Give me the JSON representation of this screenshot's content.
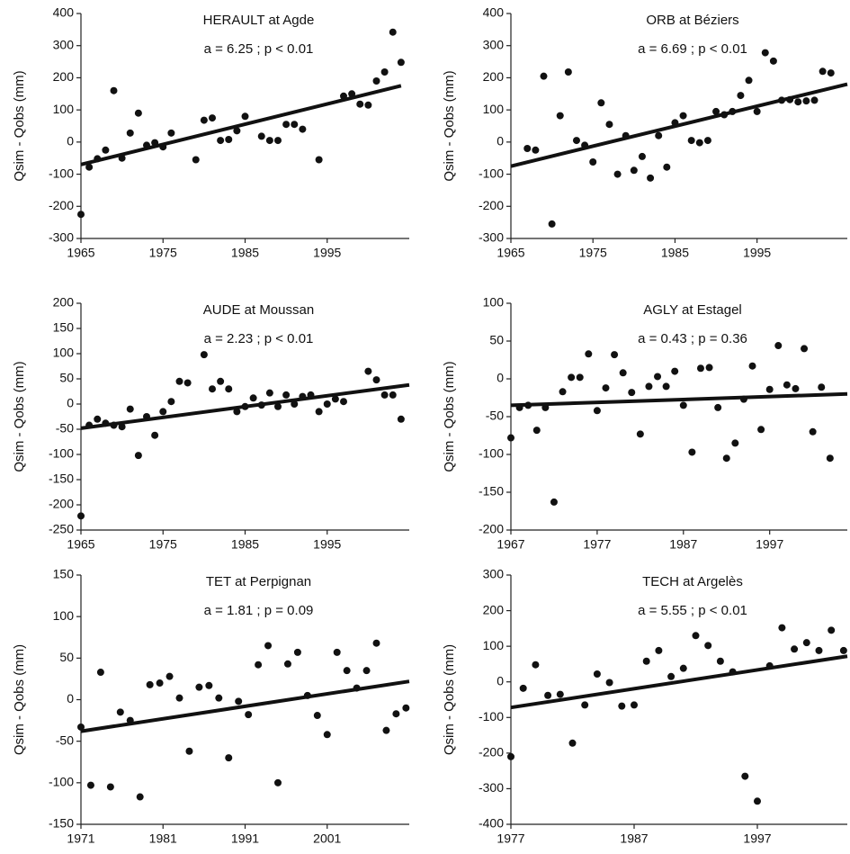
{
  "chart_data": [
    {
      "type": "scatter",
      "title": "HERAULT at Agde",
      "annotation": "a = 6.25 ; p < 0.01",
      "y_label": "Qsim - Qobs (mm)",
      "color": "#111111",
      "x": [
        1965,
        1966,
        1967,
        1968,
        1969,
        1970,
        1971,
        1972,
        1973,
        1974,
        1975,
        1976,
        1979,
        1980,
        1981,
        1982,
        1983,
        1984,
        1985,
        1987,
        1988,
        1989,
        1990,
        1991,
        1992,
        1994,
        1997,
        1998,
        1999,
        2000,
        2001,
        2002,
        2003,
        2004
      ],
      "values": [
        -225,
        -78,
        -52,
        -25,
        160,
        -50,
        28,
        90,
        -10,
        -2,
        -15,
        28,
        -55,
        68,
        75,
        5,
        8,
        35,
        80,
        18,
        5,
        5,
        55,
        55,
        40,
        -55,
        143,
        150,
        118,
        115,
        190,
        218,
        342,
        248
      ],
      "trend": {
        "x": [
          1965,
          2004
        ],
        "y": [
          -70,
          175
        ]
      },
      "xlim": [
        1965,
        2005
      ],
      "xticks": [
        1965,
        1975,
        1985,
        1995
      ],
      "ylim": [
        -300,
        400
      ],
      "yticks": [
        -300,
        -200,
        -100,
        0,
        100,
        200,
        300,
        400
      ]
    },
    {
      "type": "scatter",
      "title": "ORB at Béziers",
      "annotation": "a = 6.69 ; p < 0.01",
      "y_label": "Qsim - Qobs (mm)",
      "color": "#111111",
      "x": [
        1967,
        1968,
        1969,
        1970,
        1971,
        1972,
        1973,
        1974,
        1975,
        1976,
        1977,
        1978,
        1979,
        1980,
        1981,
        1982,
        1983,
        1984,
        1985,
        1986,
        1987,
        1988,
        1989,
        1990,
        1991,
        1992,
        1993,
        1994,
        1995,
        1996,
        1997,
        1998,
        1999,
        2000,
        2001,
        2002,
        2003,
        2004
      ],
      "values": [
        -20,
        -25,
        205,
        -255,
        82,
        218,
        5,
        -10,
        -62,
        122,
        55,
        -100,
        20,
        -88,
        -45,
        -112,
        20,
        -78,
        60,
        82,
        5,
        -2,
        5,
        95,
        85,
        95,
        145,
        192,
        95,
        278,
        252,
        130,
        132,
        125,
        128,
        130,
        220,
        215
      ],
      "trend": {
        "x": [
          1965,
          2006
        ],
        "y": [
          -75,
          180
        ]
      },
      "xlim": [
        1965,
        2006
      ],
      "xticks": [
        1965,
        1975,
        1985,
        1995
      ],
      "ylim": [
        -300,
        400
      ],
      "yticks": [
        -300,
        -200,
        -100,
        0,
        100,
        200,
        300,
        400
      ]
    },
    {
      "type": "scatter",
      "title": "AUDE at Moussan",
      "annotation": "a = 2.23 ; p < 0.01",
      "y_label": "Qsim - Qobs (mm)",
      "color": "#111111",
      "x": [
        1965,
        1966,
        1967,
        1968,
        1969,
        1970,
        1971,
        1972,
        1973,
        1974,
        1975,
        1976,
        1977,
        1978,
        1980,
        1981,
        1982,
        1983,
        1984,
        1985,
        1986,
        1987,
        1988,
        1989,
        1990,
        1991,
        1992,
        1993,
        1994,
        1995,
        1996,
        1997,
        2000,
        2001,
        2002,
        2003,
        2004
      ],
      "values": [
        -222,
        -42,
        -30,
        -38,
        -42,
        -45,
        -10,
        -102,
        -25,
        -62,
        -15,
        5,
        45,
        42,
        98,
        30,
        45,
        30,
        -15,
        -5,
        12,
        -2,
        22,
        -5,
        18,
        0,
        15,
        18,
        -15,
        0,
        10,
        5,
        65,
        48,
        18,
        18,
        -30
      ],
      "trend": {
        "x": [
          1965,
          2005
        ],
        "y": [
          -48,
          38
        ]
      },
      "xlim": [
        1965,
        2005
      ],
      "xticks": [
        1965,
        1975,
        1985,
        1995
      ],
      "ylim": [
        -250,
        200
      ],
      "yticks": [
        -250,
        -200,
        -150,
        -100,
        -50,
        0,
        50,
        100,
        150,
        200
      ]
    },
    {
      "type": "scatter",
      "title": "AGLY at Estagel",
      "annotation": "a = 0.43 ; p = 0.36",
      "y_label": "Qsim - Qobs (mm)",
      "color": "#111111",
      "x": [
        1967,
        1968,
        1969,
        1970,
        1971,
        1972,
        1973,
        1974,
        1975,
        1976,
        1977,
        1978,
        1979,
        1980,
        1981,
        1982,
        1983,
        1984,
        1985,
        1986,
        1987,
        1988,
        1989,
        1990,
        1991,
        1992,
        1993,
        1994,
        1995,
        1996,
        1997,
        1998,
        1999,
        2000,
        2001,
        2002,
        2003,
        2004
      ],
      "values": [
        -78,
        -38,
        -35,
        -68,
        -38,
        -163,
        -17,
        2,
        2,
        33,
        -42,
        -12,
        32,
        8,
        -18,
        -73,
        -10,
        3,
        -10,
        10,
        -35,
        -97,
        14,
        15,
        -38,
        -105,
        -85,
        -27,
        17,
        -67,
        -14,
        44,
        -8,
        -13,
        40,
        -70,
        -11,
        -105
      ],
      "trend": {
        "x": [
          1967,
          2006
        ],
        "y": [
          -35,
          -20
        ]
      },
      "xlim": [
        1967,
        2006
      ],
      "xticks": [
        1967,
        1977,
        1987,
        1997
      ],
      "ylim": [
        -200,
        100
      ],
      "yticks": [
        -200,
        -150,
        -100,
        -50,
        0,
        50,
        100
      ]
    },
    {
      "type": "scatter",
      "title": "TET at Perpignan",
      "annotation": "a = 1.81 ; p = 0.09",
      "y_label": "Qsim - Qobs (mm)",
      "color": "#111111",
      "x": [
        1971.0,
        1972.2,
        1973.4,
        1974.6,
        1975.8,
        1977.0,
        1978.2,
        1979.4,
        1980.6,
        1981.8,
        1983.0,
        1984.2,
        1985.4,
        1986.6,
        1987.8,
        1989.0,
        1990.2,
        1991.4,
        1992.6,
        1993.8,
        1995.0,
        1996.2,
        1997.4,
        1998.6,
        1999.8,
        2001.0,
        2002.2,
        2003.4,
        2004.6,
        2005.8,
        2007.0,
        2008.2,
        2009.4,
        2010.6
      ],
      "values": [
        -33,
        -103,
        33,
        -105,
        -15,
        -25,
        -117,
        18,
        20,
        28,
        2,
        -62,
        15,
        17,
        2,
        -70,
        -2,
        -18,
        42,
        65,
        -100,
        43,
        57,
        5,
        -19,
        -42,
        57,
        35,
        14,
        35,
        68,
        -37,
        -17,
        -10
      ],
      "trend": {
        "x": [
          1971,
          2011
        ],
        "y": [
          -38,
          22
        ]
      },
      "xlim": [
        1971,
        2011
      ],
      "xticks": [
        1971,
        1981,
        1991,
        2001
      ],
      "ylim": [
        -150,
        150
      ],
      "yticks": [
        -150,
        -100,
        -50,
        0,
        50,
        100,
        150
      ]
    },
    {
      "type": "scatter",
      "title": "TECH at Argelès",
      "annotation": "a = 5.55 ; p < 0.01",
      "y_label": "Qsim - Qobs (mm)",
      "color": "#111111",
      "x": [
        1977,
        1978,
        1979,
        1980,
        1981,
        1982,
        1983,
        1984,
        1985,
        1986,
        1987,
        1988,
        1989,
        1990,
        1991,
        1992,
        1993,
        1994,
        1995,
        1996,
        1997,
        1998,
        1999,
        2000,
        2001,
        2002,
        2003,
        2004
      ],
      "values": [
        -210,
        -18,
        48,
        -38,
        -35,
        -172,
        -65,
        22,
        -2,
        -68,
        -65,
        58,
        88,
        15,
        38,
        130,
        102,
        58,
        28,
        -265,
        -335,
        45,
        152,
        92,
        110,
        88,
        145,
        88
      ],
      "trend": {
        "x": [
          1977,
          2004.3
        ],
        "y": [
          -72,
          72
        ]
      },
      "xlim": [
        1977,
        2004.3
      ],
      "xticks": [
        1977,
        1987,
        1997
      ],
      "ylim": [
        -400,
        300
      ],
      "yticks": [
        -400,
        -300,
        -200,
        -100,
        0,
        100,
        200,
        300
      ]
    }
  ]
}
